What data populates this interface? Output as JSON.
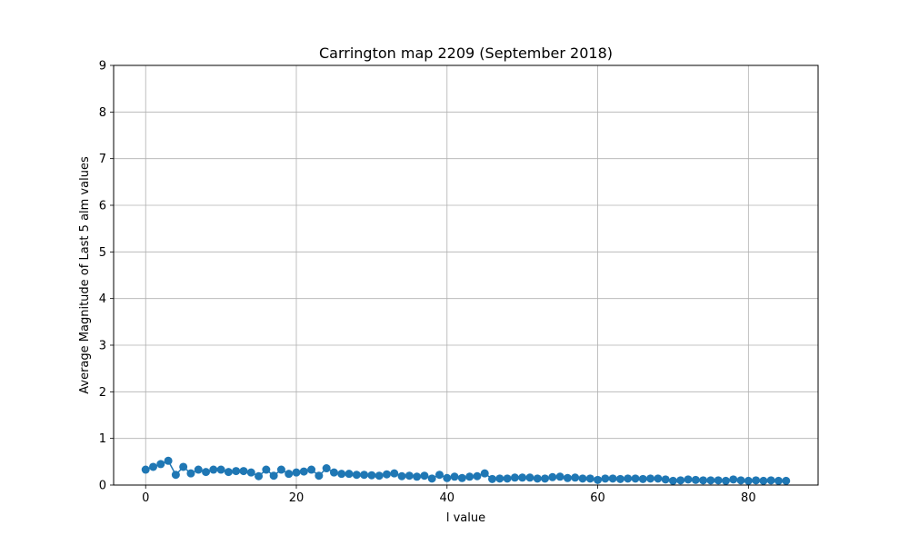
{
  "chart_data": {
    "type": "line",
    "title": "Carrington map 2209 (September 2018)",
    "xlabel": "l value",
    "ylabel": "Average Magnitude of Last 5 alm values",
    "xlim": [
      -4.25,
      89.25
    ],
    "ylim": [
      0,
      9
    ],
    "xticks": [
      0,
      20,
      40,
      60,
      80
    ],
    "yticks": [
      0,
      1,
      2,
      3,
      4,
      5,
      6,
      7,
      8,
      9
    ],
    "grid": true,
    "marker": "circle",
    "color": "#1f77b4",
    "series": [
      {
        "x": [
          0,
          1,
          2,
          3,
          4,
          5,
          6,
          7,
          8,
          9,
          10,
          11,
          12,
          13,
          14,
          15,
          16,
          17,
          18,
          19,
          20,
          21,
          22,
          23,
          24,
          25,
          26,
          27,
          28,
          29,
          30,
          31,
          32,
          33,
          34,
          35,
          36,
          37,
          38,
          39,
          40,
          41,
          42,
          43,
          44,
          45,
          46,
          47,
          48,
          49,
          50,
          51,
          52,
          53,
          54,
          55,
          56,
          57,
          58,
          59,
          60,
          61,
          62,
          63,
          64,
          65,
          66,
          67,
          68,
          69,
          70,
          71,
          72,
          73,
          74,
          75,
          76,
          77,
          78,
          79,
          80,
          81,
          82,
          83,
          84,
          85
        ],
        "y": [
          0.33,
          0.39,
          0.45,
          0.52,
          0.22,
          0.39,
          0.25,
          0.33,
          0.28,
          0.33,
          0.33,
          0.28,
          0.3,
          0.3,
          0.27,
          0.19,
          0.33,
          0.2,
          0.33,
          0.24,
          0.27,
          0.29,
          0.33,
          0.2,
          0.36,
          0.27,
          0.24,
          0.24,
          0.22,
          0.22,
          0.21,
          0.2,
          0.23,
          0.25,
          0.19,
          0.2,
          0.18,
          0.2,
          0.14,
          0.22,
          0.15,
          0.18,
          0.15,
          0.18,
          0.19,
          0.25,
          0.13,
          0.14,
          0.14,
          0.16,
          0.16,
          0.16,
          0.14,
          0.14,
          0.17,
          0.18,
          0.15,
          0.16,
          0.14,
          0.14,
          0.11,
          0.14,
          0.14,
          0.13,
          0.14,
          0.14,
          0.13,
          0.14,
          0.14,
          0.12,
          0.09,
          0.1,
          0.12,
          0.11,
          0.1,
          0.1,
          0.1,
          0.09,
          0.12,
          0.1,
          0.09,
          0.1,
          0.09,
          0.1,
          0.09,
          0.09
        ]
      }
    ]
  }
}
